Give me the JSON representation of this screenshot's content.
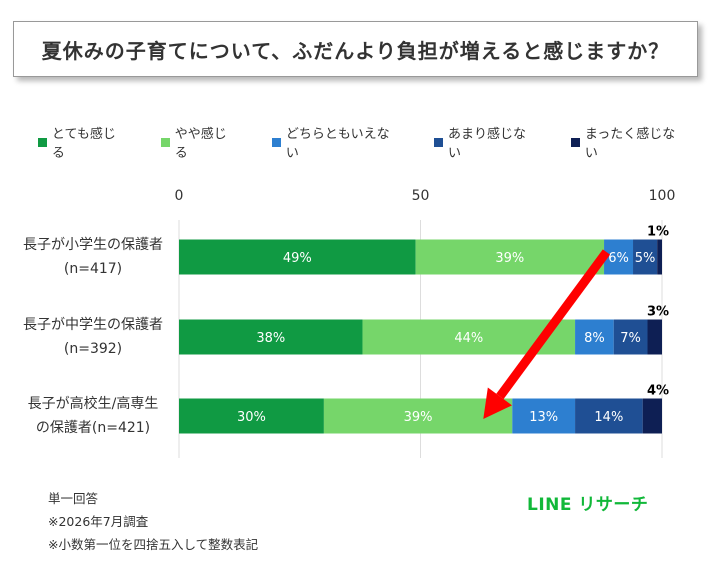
{
  "title": "夏休みの子育てについて、ふだんより負担が増えると感じますか？",
  "legend": [
    {
      "label": "とても感じる",
      "color": "#109a43"
    },
    {
      "label": "やや感じる",
      "color": "#76d66a"
    },
    {
      "label": "どちらともいえない",
      "color": "#2d7fd0"
    },
    {
      "label": "あまり感じない",
      "color": "#1f4f94"
    },
    {
      "label": "まったく感じない",
      "color": "#0e1f54"
    }
  ],
  "chart_data": {
    "type": "bar",
    "orientation": "horizontal",
    "stacked": true,
    "xlim": [
      0,
      100
    ],
    "xticks": [
      "0",
      "50",
      "100"
    ],
    "categories": [
      [
        "長子が小学生の保護者",
        "(n=417)"
      ],
      [
        "長子が中学生の保護者",
        "(n=392)"
      ],
      [
        "長子が高校生/高専生",
        "の保護者(n=421)"
      ]
    ],
    "series": [
      {
        "name": "とても感じる",
        "values": [
          49,
          38,
          30
        ],
        "labels": [
          "49%",
          "38%",
          "30%"
        ]
      },
      {
        "name": "やや感じる",
        "values": [
          39,
          44,
          39
        ],
        "labels": [
          "39%",
          "44%",
          "39%"
        ]
      },
      {
        "name": "どちらともいえない",
        "values": [
          6,
          8,
          13
        ],
        "labels": [
          "6%",
          "8%",
          "13%"
        ]
      },
      {
        "name": "あまり感じない",
        "values": [
          5,
          7,
          14
        ],
        "labels": [
          "5%",
          "7%",
          "14%"
        ]
      },
      {
        "name": "まったく感じない",
        "values": [
          1,
          3,
          4
        ],
        "labels": [
          "1%",
          "3%",
          "4%"
        ]
      }
    ],
    "annotation": {
      "type": "arrow",
      "color": "#ff0000",
      "from": [
        88.5,
        0
      ],
      "to": [
        63,
        2
      ]
    }
  },
  "notes": [
    "単一回答",
    "※2026年7月調査",
    "※小数第一位を四捨五入して整数表記"
  ],
  "brand": "LINE リサーチ"
}
